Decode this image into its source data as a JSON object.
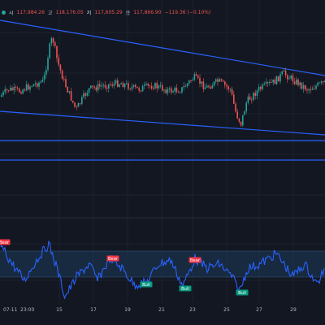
{
  "toolbar": {
    "open_label": "시",
    "open_value": "117,984.26",
    "high_label": "고",
    "high_value": "118,176.05",
    "low_label": "저",
    "low_value": "117,605.29",
    "close_label": "종",
    "close_value": "117,866.90",
    "change": "−119.36 (−0.10%)",
    "status_color": "#26a69a"
  },
  "colors": {
    "background": "#131722",
    "up": "#26a69a",
    "down": "#ef5350",
    "trendline": "#2962ff",
    "oscillator": "#2962ff",
    "bear_label": "#f23645",
    "bull_label": "#089981"
  },
  "chart_data": [
    {
      "type": "candlestick",
      "title": "",
      "x_ticks": [
        "07-11",
        "23:00",
        "15",
        "17",
        "19",
        "21",
        "23",
        "25",
        "27",
        "29"
      ],
      "drawings": [
        {
          "kind": "descending-trendline",
          "label": ""
        },
        {
          "kind": "ascending-trendline",
          "label": ""
        },
        {
          "kind": "horizontal-line",
          "label": ""
        },
        {
          "kind": "horizontal-line",
          "label": ""
        }
      ]
    },
    {
      "type": "line",
      "title": "",
      "band": [
        30,
        70
      ],
      "ylim": [
        0,
        100
      ],
      "labels": [
        {
          "text": "Bear",
          "kind": "bear"
        },
        {
          "text": "Bear",
          "kind": "bear"
        },
        {
          "text": "Bear",
          "kind": "bear"
        },
        {
          "text": "Bull",
          "kind": "bull"
        },
        {
          "text": "Bull",
          "kind": "bull"
        },
        {
          "text": "Bull",
          "kind": "bull"
        }
      ]
    }
  ]
}
